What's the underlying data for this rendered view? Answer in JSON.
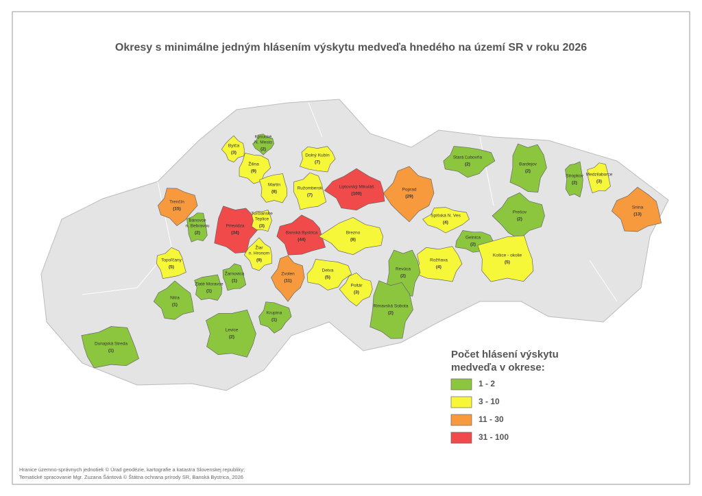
{
  "title": "Okresy s minimálne jedným hlásením výskytu medveďa hnedého na území SR v roku 2026",
  "legend": {
    "title_lines": [
      "Počet hlásení výskytu",
      "medveďa v okrese:"
    ],
    "items": [
      {
        "label": "1 - 2",
        "min": 1,
        "max": 2,
        "color": "#8cc63f"
      },
      {
        "label": "3 - 10",
        "min": 3,
        "max": 10,
        "color": "#f7f73a"
      },
      {
        "label": "11 - 30",
        "min": 11,
        "max": 30,
        "color": "#f79a3e"
      },
      {
        "label": "31 - 100",
        "min": 31,
        "max": 100,
        "color": "#f04a4a"
      }
    ]
  },
  "districts": [
    {
      "name": [
        "Bytča"
      ],
      "count": 3,
      "count_label": "(3)"
    },
    {
      "name": [
        "Kysucké",
        "N. Mesto"
      ],
      "count": 2,
      "count_label": "(2)"
    },
    {
      "name": [
        "Žilina"
      ],
      "count": 9,
      "count_label": "(9)"
    },
    {
      "name": [
        "Dolný Kubín"
      ],
      "count": 7,
      "count_label": "(7)"
    },
    {
      "name": [
        "Martin"
      ],
      "count": 8,
      "count_label": "(8)"
    },
    {
      "name": [
        "Ružomberok"
      ],
      "count": 7,
      "count_label": "(7)"
    },
    {
      "name": [
        "Liptovský Mikuláš"
      ],
      "count": 100,
      "count_label": "(100)"
    },
    {
      "name": [
        "Poprad"
      ],
      "count": 29,
      "count_label": "(29)"
    },
    {
      "name": [
        "Stará Ľubovňa"
      ],
      "count": 2,
      "count_label": "(2)"
    },
    {
      "name": [
        "Bardejov"
      ],
      "count": 2,
      "count_label": "(2)"
    },
    {
      "name": [
        "Stropkov"
      ],
      "count": 2,
      "count_label": "(2)"
    },
    {
      "name": [
        "Medzilaborce"
      ],
      "count": 3,
      "count_label": "(3)"
    },
    {
      "name": [
        "Snina"
      ],
      "count": 13,
      "count_label": "(13)"
    },
    {
      "name": [
        "Prešov"
      ],
      "count": 2,
      "count_label": "(2)"
    },
    {
      "name": [
        "Trenčín"
      ],
      "count": 15,
      "count_label": "(15)"
    },
    {
      "name": [
        "Prievidza"
      ],
      "count": 34,
      "count_label": "(34)"
    },
    {
      "name": [
        "Turčianske",
        "Teplice"
      ],
      "count": 3,
      "count_label": "(3)"
    },
    {
      "name": [
        "Bánovce",
        "n. Bebravou"
      ],
      "count": 2,
      "count_label": "(2)"
    },
    {
      "name": [
        "Banská Bystrica"
      ],
      "count": 44,
      "count_label": "(44)"
    },
    {
      "name": [
        "Brezno"
      ],
      "count": 8,
      "count_label": "(8)"
    },
    {
      "name": [
        "Spišská N. Ves"
      ],
      "count": 4,
      "count_label": "(4)"
    },
    {
      "name": [
        "Gelnica"
      ],
      "count": 2,
      "count_label": "(2)"
    },
    {
      "name": [
        "Rožňava"
      ],
      "count": 4,
      "count_label": "(4)"
    },
    {
      "name": [
        "Košice - okolie"
      ],
      "count": 5,
      "count_label": "(5)"
    },
    {
      "name": [
        "Topoľčany"
      ],
      "count": 5,
      "count_label": "(5)"
    },
    {
      "name": [
        "Žiar",
        "n. Hronom"
      ],
      "count": 9,
      "count_label": "(9)"
    },
    {
      "name": [
        "Zvolen"
      ],
      "count": 11,
      "count_label": "(11)"
    },
    {
      "name": [
        "Detva"
      ],
      "count": 5,
      "count_label": "(5)"
    },
    {
      "name": [
        "Revúca"
      ],
      "count": 2,
      "count_label": "(2)"
    },
    {
      "name": [
        "Zlaté Moravce"
      ],
      "count": 1,
      "count_label": "(1)"
    },
    {
      "name": [
        "Žarnovica"
      ],
      "count": 1,
      "count_label": "(1)"
    },
    {
      "name": [
        "Nitra"
      ],
      "count": 1,
      "count_label": "(1)"
    },
    {
      "name": [
        "Poltár"
      ],
      "count": 3,
      "count_label": "(3)"
    },
    {
      "name": [
        "Krupina"
      ],
      "count": 1,
      "count_label": "(1)"
    },
    {
      "name": [
        "Rimavská Sobota"
      ],
      "count": 2,
      "count_label": "(2)"
    },
    {
      "name": [
        "Levice"
      ],
      "count": 2,
      "count_label": "(2)"
    },
    {
      "name": [
        "Dunajská Streda"
      ],
      "count": 1,
      "count_label": "(1)"
    }
  ],
  "footer": [
    "Hranice územno-správnych jednotiek © Úrad geodézie, kartografie a katastra Slovenskej republiky;",
    "Tematické spracovanie Mgr. Zuzana Šántová © Štátna ochrana prírody SR, Banská Bystrica, 2026"
  ]
}
